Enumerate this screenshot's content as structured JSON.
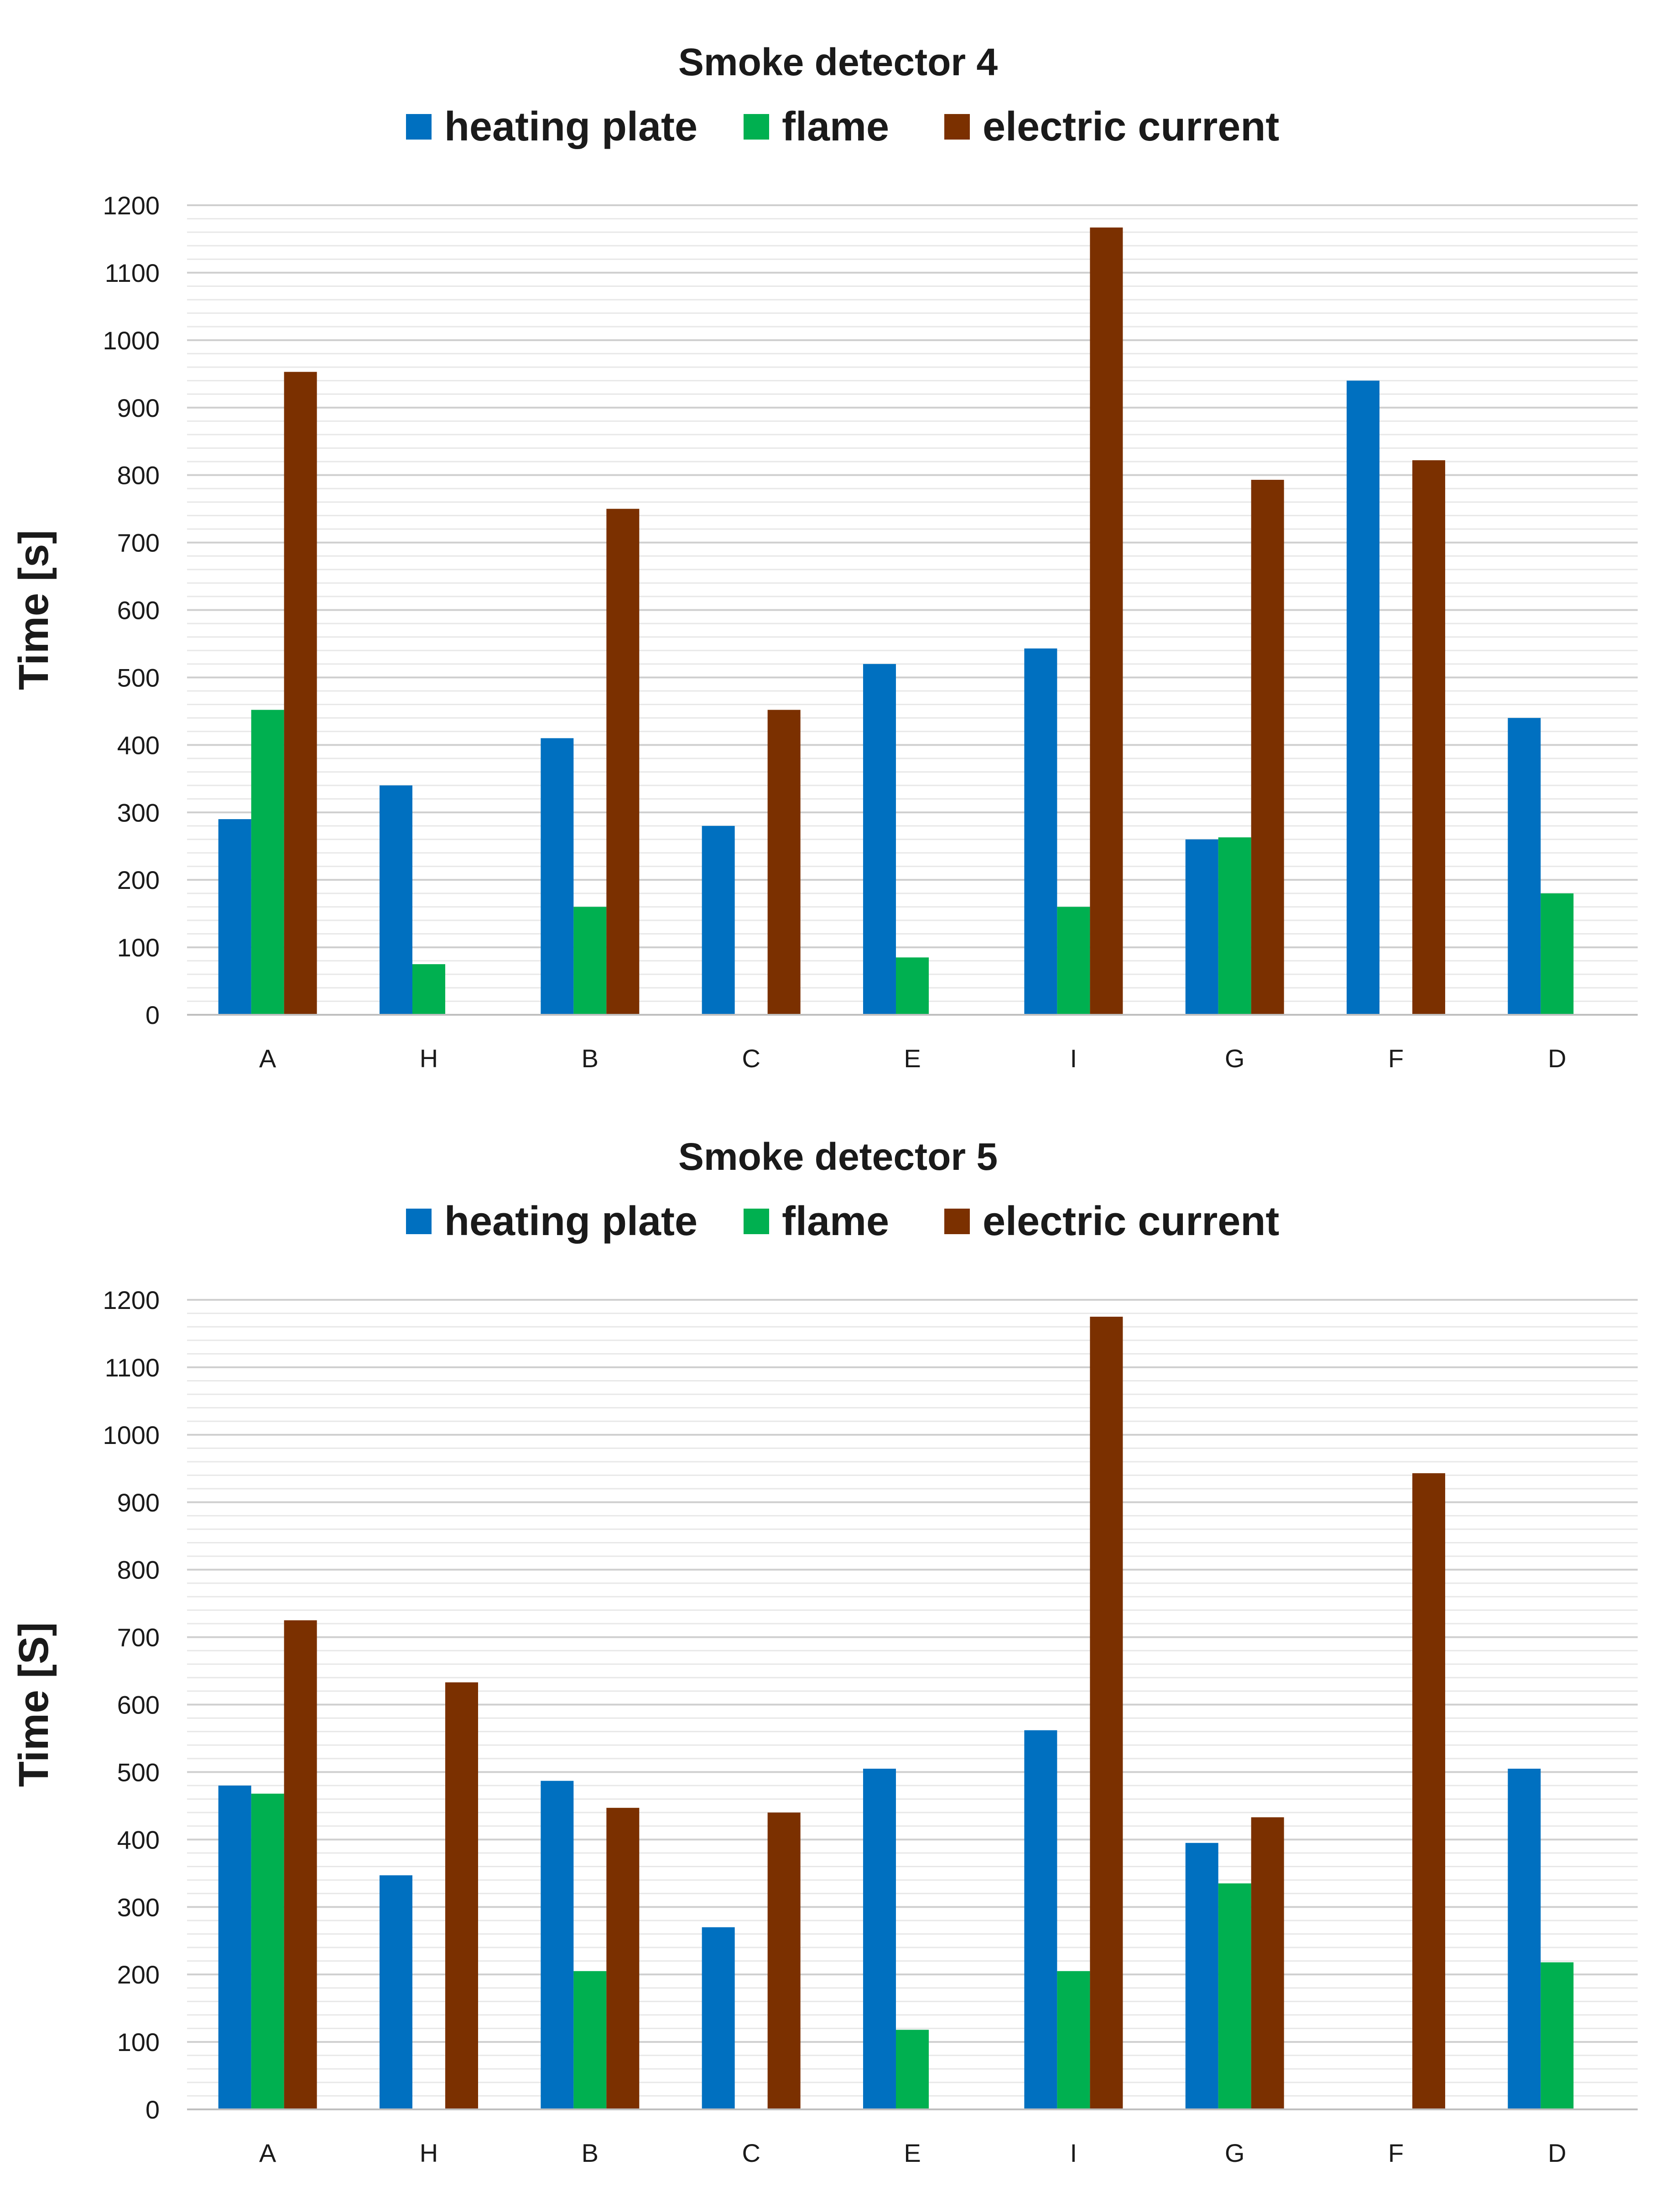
{
  "chart_data": [
    {
      "type": "bar",
      "title": "Smoke detector 4",
      "ylabel": "Time [s]",
      "xlabel": "",
      "ylim": [
        0,
        1200
      ],
      "ytick_step": 100,
      "minor_grid_step": 20,
      "grid": true,
      "legend_position": "top",
      "categories": [
        "A",
        "H",
        "B",
        "C",
        "E",
        "I",
        "G",
        "F",
        "D"
      ],
      "series": [
        {
          "name": "heating plate",
          "color": "#0070C0",
          "values": [
            290,
            340,
            410,
            280,
            520,
            543,
            260,
            940,
            440
          ]
        },
        {
          "name": "flame",
          "color": "#00B050",
          "values": [
            452,
            75,
            160,
            0,
            85,
            160,
            263,
            0,
            180
          ]
        },
        {
          "name": "electric current",
          "color": "#7B3000",
          "values": [
            953,
            0,
            750,
            452,
            0,
            1167,
            793,
            822,
            0
          ]
        }
      ]
    },
    {
      "type": "bar",
      "title": "Smoke detector 5",
      "ylabel": "Time  [S]",
      "xlabel": "",
      "ylim": [
        0,
        1200
      ],
      "ytick_step": 100,
      "minor_grid_step": 20,
      "grid": true,
      "legend_position": "top",
      "categories": [
        "A",
        "H",
        "B",
        "C",
        "E",
        "I",
        "G",
        "F",
        "D"
      ],
      "series": [
        {
          "name": "heating plate",
          "color": "#0070C0",
          "values": [
            480,
            347,
            487,
            270,
            505,
            562,
            395,
            0,
            505
          ]
        },
        {
          "name": "flame",
          "color": "#00B050",
          "values": [
            468,
            0,
            205,
            0,
            118,
            205,
            335,
            0,
            218
          ]
        },
        {
          "name": "electric current",
          "color": "#7B3000",
          "values": [
            725,
            633,
            447,
            440,
            0,
            1175,
            433,
            943,
            0
          ]
        }
      ]
    }
  ]
}
